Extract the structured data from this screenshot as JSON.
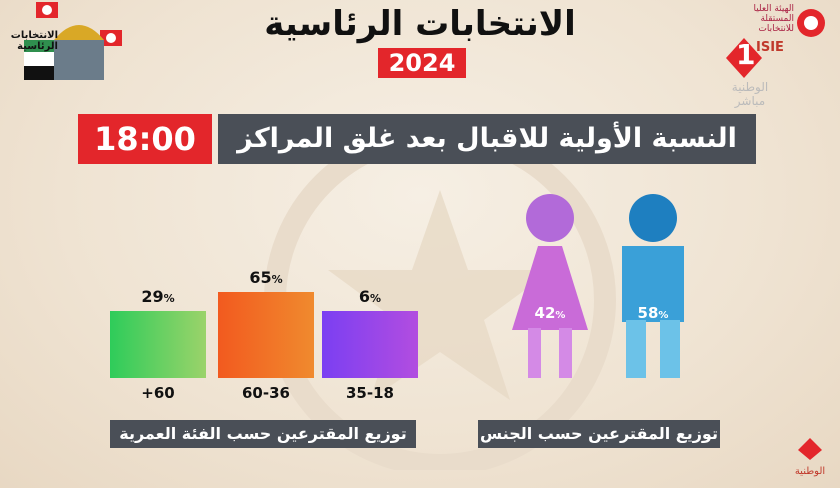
{
  "header": {
    "title": "الانتخابات الرئاسية",
    "year": "2024",
    "subtitle": "النسبة الأولية للاقبال بعد غلق المراكز",
    "time": "18:00"
  },
  "branding": {
    "left_logo_text": "الانتخابات الرئاسية",
    "isie_text": "الهيئة العليا المستقلة للانتخابات",
    "isie_abbr": "ISIE",
    "channel_number": "1",
    "channel_name": "الوطنية",
    "live_label": "مباشر",
    "watermark_text": "الوطنية"
  },
  "chart_data": [
    {
      "type": "bar",
      "title": "توزيع المقترعين حسب الفئة العمرية",
      "categories": [
        "+60",
        "60-36",
        "35-18"
      ],
      "values": [
        29,
        65,
        6
      ],
      "unit": "%",
      "colors": [
        [
          "#2ecc5a",
          "#9bd36a"
        ],
        [
          "#f25a1f",
          "#f08a2e"
        ],
        [
          "#7b3ff2",
          "#b24de0"
        ]
      ],
      "xlabel": "",
      "ylabel": ""
    },
    {
      "type": "pictogram",
      "title": "توزيع المقترعين حسب الجنس",
      "categories": [
        "female",
        "male"
      ],
      "values": [
        42,
        58
      ],
      "unit": "%",
      "colors": [
        "#c96bd8",
        "#3aa0d8"
      ]
    }
  ],
  "colors": {
    "accent_red": "#e3262b",
    "banner_gray": "#4a4f57",
    "female_top": "#b26ad9",
    "male_head": "#1e7fc0"
  }
}
